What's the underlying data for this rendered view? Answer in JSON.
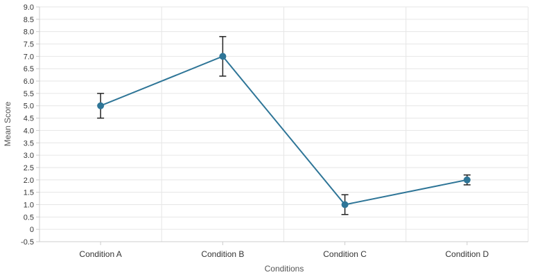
{
  "chart_data": {
    "type": "line",
    "categories": [
      "Condition A",
      "Condition B",
      "Condition C",
      "Condition D"
    ],
    "series": [
      {
        "values": [
          5.0,
          7.0,
          1.0,
          2.0
        ],
        "error_low": [
          4.5,
          6.2,
          0.6,
          1.8
        ],
        "error_high": [
          5.5,
          7.8,
          1.4,
          2.2
        ],
        "color": "#2e7597"
      }
    ],
    "xlabel": "Conditions",
    "ylabel": "Mean Score",
    "ylim": [
      -0.5,
      9.0
    ],
    "yticks": [
      "9.0",
      "8.5",
      "8.0",
      "7.5",
      "7.0",
      "6.5",
      "6.0",
      "5.5",
      "5.0",
      "4.5",
      "4.0",
      "3.5",
      "3.0",
      "2.5",
      "2.0",
      "1.5",
      "1.0",
      "0.5",
      "0",
      "-0.5"
    ],
    "grid": true,
    "gridColor": "#e6e6e6",
    "axisColor": "#cccccc",
    "errorBarColor": "#222222",
    "legend": "none"
  }
}
